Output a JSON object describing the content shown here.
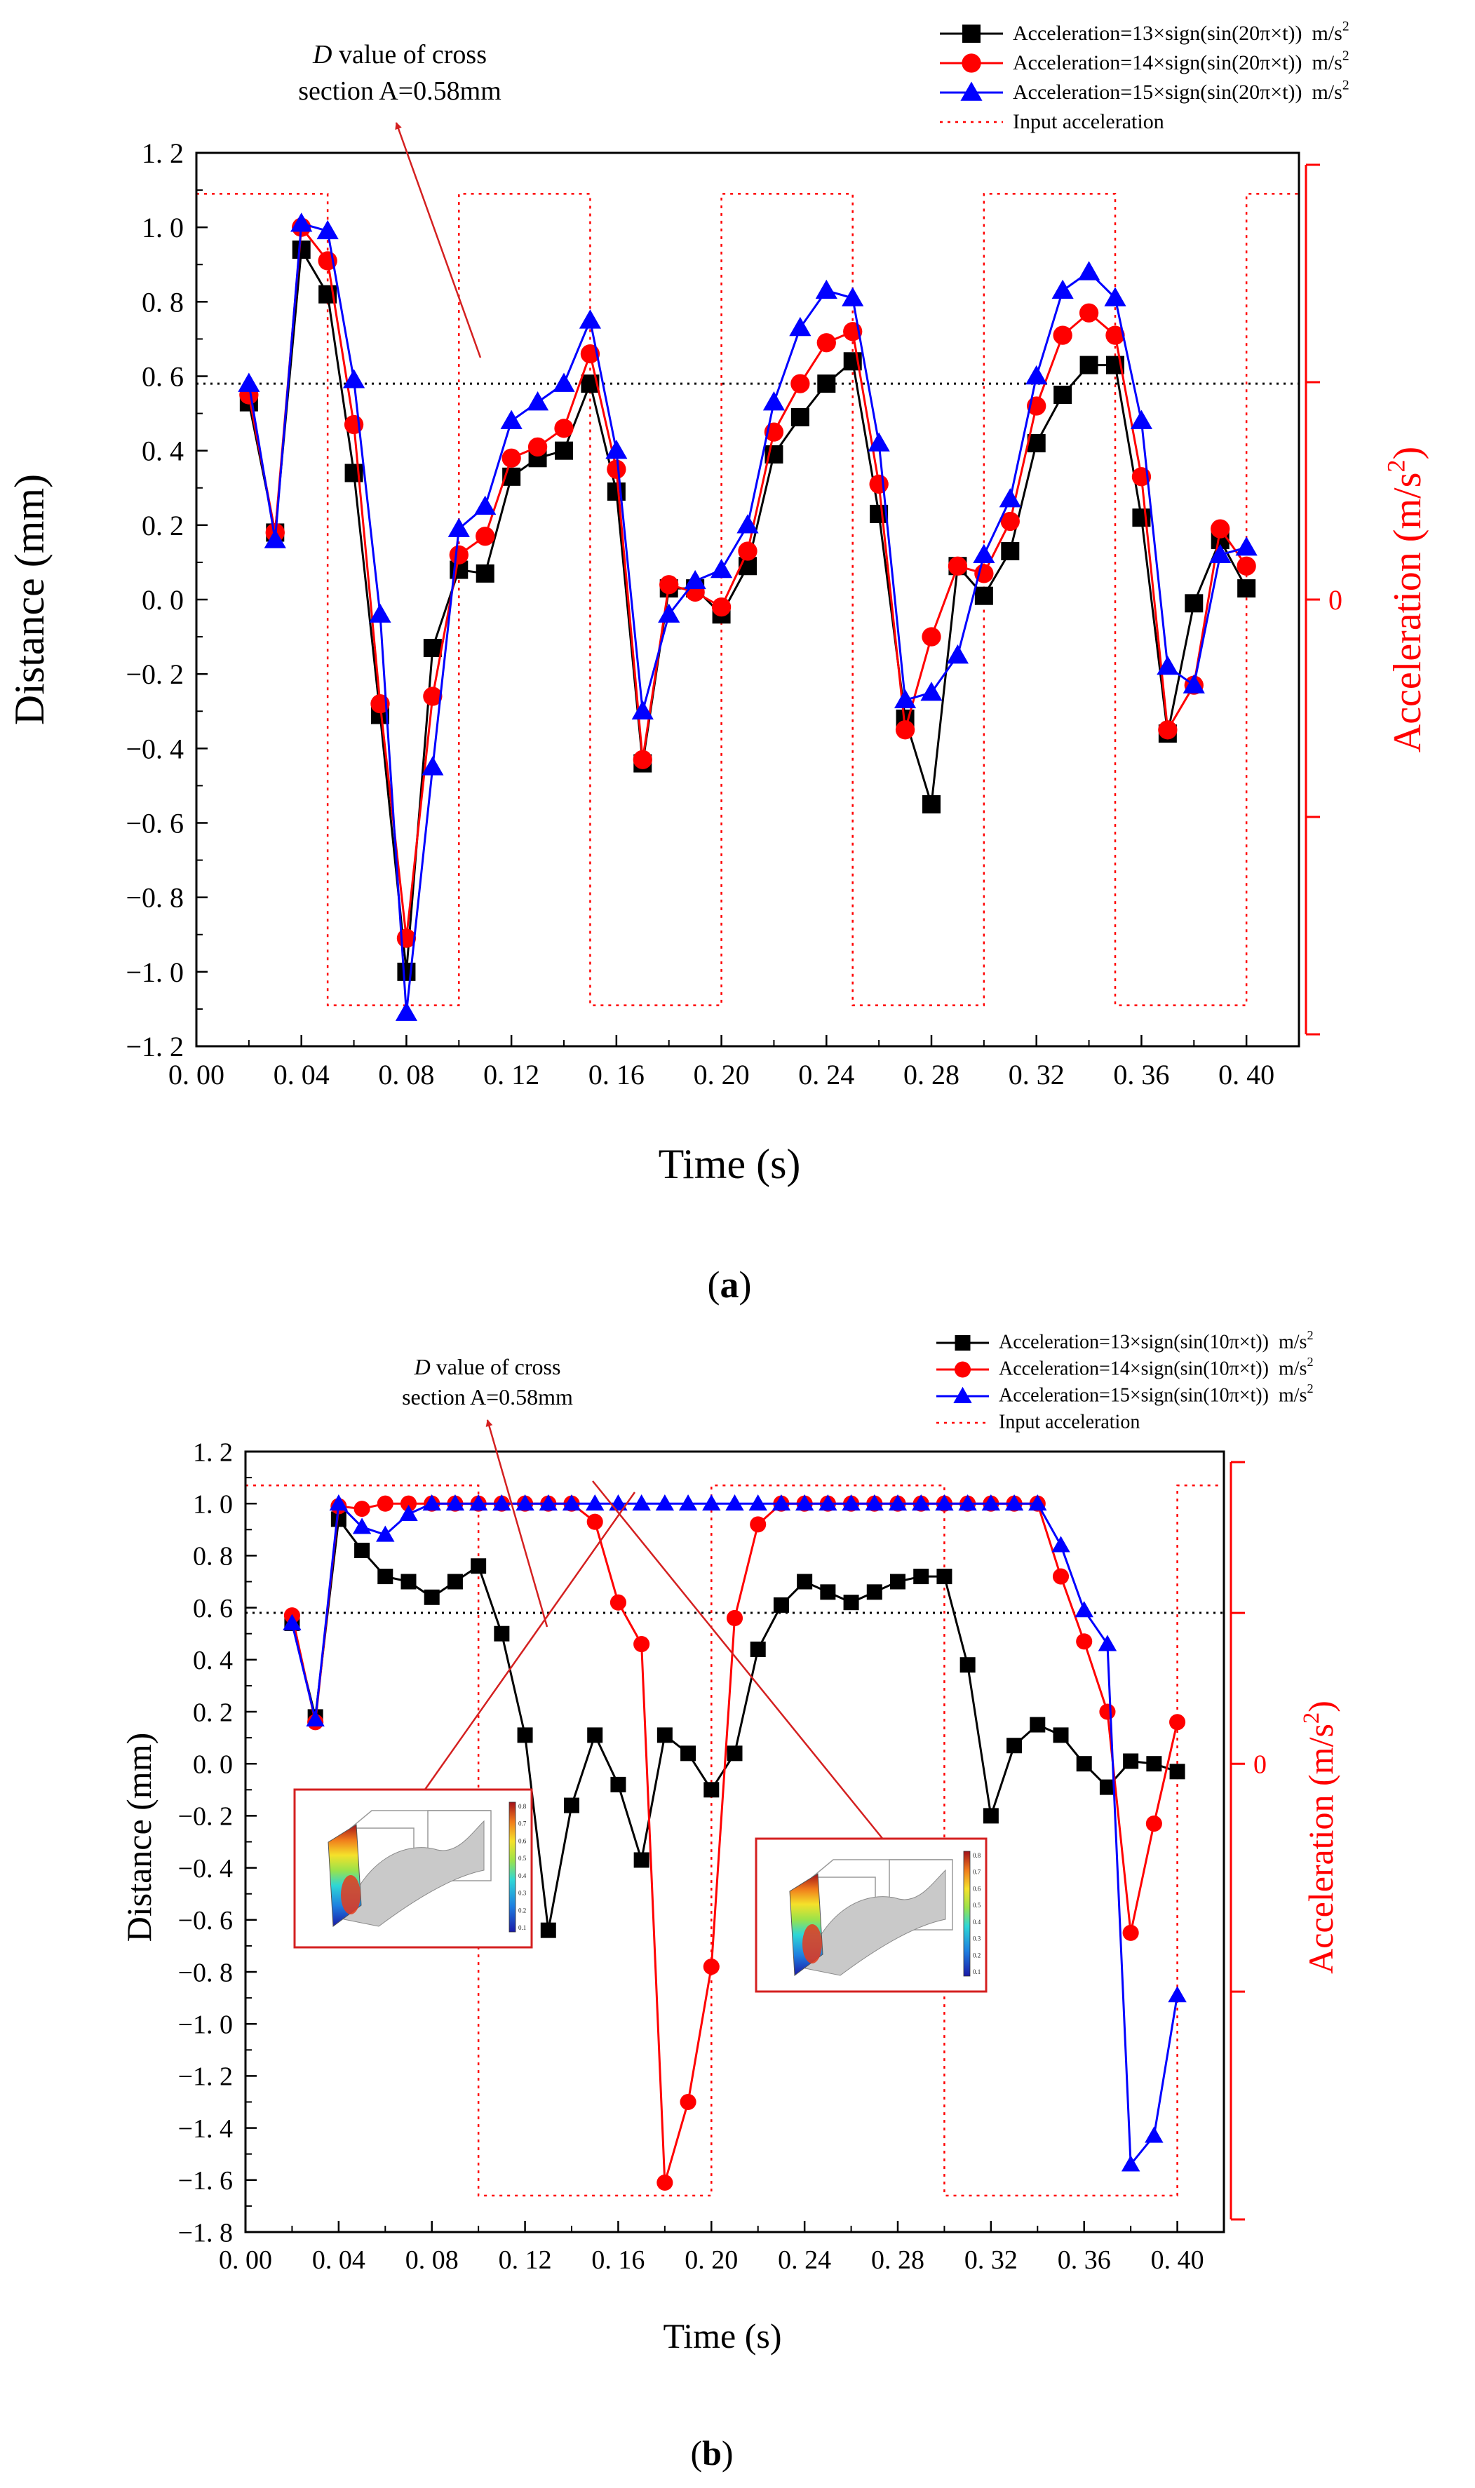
{
  "chart_data": [
    {
      "type": "line",
      "panel_label": "(a)",
      "panel_letter": "a",
      "xlabel": "Time (s)",
      "ylabel": "Distance (mm)",
      "y2label_main": "Acceleration (m/s",
      "y2label_sup": "2",
      "y2label_close": ")",
      "xlim": [
        0.0,
        0.42
      ],
      "ylim": [
        -1.2,
        1.2
      ],
      "xticks": [
        0.0,
        0.04,
        0.08,
        0.12,
        0.16,
        0.2,
        0.24,
        0.28,
        0.32,
        0.36,
        0.4
      ],
      "xtick_labels": [
        "0. 00",
        "0. 04",
        "0. 08",
        "0. 12",
        "0. 16",
        "0. 20",
        "0. 24",
        "0. 28",
        "0. 32",
        "0. 36",
        "0. 40"
      ],
      "yticks": [
        -1.2,
        -1.0,
        -0.8,
        -0.6,
        -0.4,
        -0.2,
        0.0,
        0.2,
        0.4,
        0.6,
        0.8,
        1.0,
        1.2
      ],
      "ytick_labels": [
        "−1. 2",
        "−1. 0",
        "−0. 8",
        "−0. 6",
        "−0. 4",
        "−0. 2",
        "0. 0",
        "0. 2",
        "0. 4",
        "0. 6",
        "0. 8",
        "1. 0",
        "1. 2"
      ],
      "y2_zero_label": "0",
      "reference_line_y": 0.58,
      "annotation": {
        "line1_italic": "D",
        "line1_rest": " value of cross",
        "line2": "section A=0.58mm"
      },
      "x": [
        0.02,
        0.03,
        0.04,
        0.05,
        0.06,
        0.07,
        0.08,
        0.09,
        0.1,
        0.11,
        0.12,
        0.13,
        0.14,
        0.15,
        0.16,
        0.17,
        0.18,
        0.19,
        0.2,
        0.21,
        0.22,
        0.23,
        0.24,
        0.25,
        0.26,
        0.27,
        0.28,
        0.29,
        0.3,
        0.31,
        0.32,
        0.33,
        0.34,
        0.35,
        0.36,
        0.37,
        0.38,
        0.39,
        0.4
      ],
      "series": [
        {
          "name": "Acceleration=13×sign(sin(20π×t))",
          "unit": "m/s",
          "unit_sup": "2",
          "color": "#000000",
          "marker": "square",
          "values": [
            0.53,
            0.18,
            0.94,
            0.82,
            0.34,
            -0.31,
            -1.0,
            -0.13,
            0.08,
            0.07,
            0.33,
            0.38,
            0.4,
            0.58,
            0.29,
            -0.44,
            0.03,
            0.03,
            -0.04,
            0.09,
            0.39,
            0.49,
            0.58,
            0.64,
            0.23,
            -0.32,
            -0.55,
            0.09,
            0.01,
            0.13,
            0.42,
            0.55,
            0.63,
            0.63,
            0.22,
            -0.36,
            -0.01,
            0.16,
            0.03
          ]
        },
        {
          "name": "Acceleration=14×sign(sin(20π×t))",
          "unit": "m/s",
          "unit_sup": "2",
          "color": "#ff0000",
          "marker": "circle",
          "values": [
            0.55,
            0.18,
            1.0,
            0.91,
            0.47,
            -0.28,
            -0.91,
            -0.26,
            0.12,
            0.17,
            0.38,
            0.41,
            0.46,
            0.66,
            0.35,
            -0.43,
            0.04,
            0.02,
            -0.02,
            0.13,
            0.45,
            0.58,
            0.69,
            0.72,
            0.31,
            -0.35,
            -0.1,
            0.09,
            0.07,
            0.21,
            0.52,
            0.71,
            0.77,
            0.71,
            0.33,
            -0.35,
            -0.23,
            0.19,
            0.09
          ]
        },
        {
          "name": "Acceleration=15×sign(sin(20π×t))",
          "unit": "m/s",
          "unit_sup": "2",
          "color": "#0000ff",
          "marker": "triangle",
          "values": [
            0.58,
            0.16,
            1.01,
            0.99,
            0.59,
            -0.04,
            -1.11,
            -0.45,
            0.19,
            0.25,
            0.48,
            0.53,
            0.58,
            0.75,
            0.4,
            -0.3,
            -0.04,
            0.05,
            0.08,
            0.2,
            0.53,
            0.73,
            0.83,
            0.81,
            0.42,
            -0.27,
            -0.25,
            -0.15,
            0.12,
            0.27,
            0.6,
            0.83,
            0.88,
            0.81,
            0.48,
            -0.18,
            -0.23,
            0.12,
            0.14
          ]
        }
      ],
      "input_acceleration": {
        "name": "Input acceleration",
        "color": "#ff0000",
        "style": "dotted",
        "period": 0.1,
        "high": 1.09,
        "low": -1.09
      }
    },
    {
      "type": "line",
      "panel_label": "(b)",
      "panel_letter": "b",
      "xlabel": "Time (s)",
      "ylabel": "Distance (mm)",
      "y2label_main": "Acceleration (m/s",
      "y2label_sup": "2",
      "y2label_close": ")",
      "xlim": [
        0.0,
        0.42
      ],
      "ylim": [
        -1.8,
        1.2
      ],
      "xticks": [
        0.0,
        0.04,
        0.08,
        0.12,
        0.16,
        0.2,
        0.24,
        0.28,
        0.32,
        0.36,
        0.4
      ],
      "xtick_labels": [
        "0. 00",
        "0. 04",
        "0. 08",
        "0. 12",
        "0. 16",
        "0. 20",
        "0. 24",
        "0. 28",
        "0. 32",
        "0. 36",
        "0. 40"
      ],
      "yticks": [
        -1.8,
        -1.6,
        -1.4,
        -1.2,
        -1.0,
        -0.8,
        -0.6,
        -0.4,
        -0.2,
        0.0,
        0.2,
        0.4,
        0.6,
        0.8,
        1.0,
        1.2
      ],
      "ytick_labels": [
        "−1. 8",
        "−1. 6",
        "−1. 4",
        "−1. 2",
        "−1. 0",
        "−0. 8",
        "−0. 6",
        "−0. 4",
        "−0. 2",
        "0. 0",
        "0. 2",
        "0. 4",
        "0. 6",
        "0. 8",
        "1. 0",
        "1. 2"
      ],
      "y2_zero_label": "0",
      "reference_line_y": 0.58,
      "annotation": {
        "line1_italic": "D",
        "line1_rest": " value of cross",
        "line2": "section A=0.58mm"
      },
      "x": [
        0.02,
        0.03,
        0.04,
        0.05,
        0.06,
        0.07,
        0.08,
        0.09,
        0.1,
        0.11,
        0.12,
        0.13,
        0.14,
        0.15,
        0.16,
        0.17,
        0.18,
        0.19,
        0.2,
        0.21,
        0.22,
        0.23,
        0.24,
        0.25,
        0.26,
        0.27,
        0.28,
        0.29,
        0.3,
        0.31,
        0.32,
        0.33,
        0.34,
        0.35,
        0.36,
        0.37,
        0.38,
        0.39,
        0.4
      ],
      "series": [
        {
          "name": "Acceleration=13×sign(sin(10π×t))",
          "unit": "m/s",
          "unit_sup": "2",
          "color": "#000000",
          "marker": "square",
          "values": [
            0.54,
            0.18,
            0.94,
            0.82,
            0.72,
            0.7,
            0.64,
            0.7,
            0.76,
            0.5,
            0.11,
            -0.64,
            -0.16,
            0.11,
            -0.08,
            -0.37,
            0.11,
            0.04,
            -0.1,
            0.04,
            0.44,
            0.61,
            0.7,
            0.66,
            0.62,
            0.66,
            0.7,
            0.72,
            0.72,
            0.38,
            -0.2,
            0.07,
            0.15,
            0.11,
            0.0,
            -0.09,
            0.01,
            0.0,
            -0.03
          ]
        },
        {
          "name": "Acceleration=14×sign(sin(10π×t))",
          "unit": "m/s",
          "unit_sup": "2",
          "color": "#ff0000",
          "marker": "circle",
          "values": [
            0.57,
            0.16,
            0.99,
            0.98,
            1.0,
            1.0,
            1.0,
            1.0,
            1.0,
            1.0,
            1.0,
            1.0,
            1.0,
            0.93,
            0.62,
            0.46,
            -1.61,
            -1.3,
            -0.78,
            0.56,
            0.92,
            1.0,
            1.0,
            1.0,
            1.0,
            1.0,
            1.0,
            1.0,
            1.0,
            1.0,
            1.0,
            1.0,
            1.0,
            0.72,
            0.47,
            0.2,
            -0.65,
            -0.23,
            0.16
          ]
        },
        {
          "name": "Acceleration=15×sign(sin(10π×t))",
          "unit": "m/s",
          "unit_sup": "2",
          "color": "#0000ff",
          "marker": "triangle",
          "values": [
            0.54,
            0.17,
            1.0,
            0.91,
            0.88,
            0.96,
            1.0,
            1.0,
            1.0,
            1.0,
            1.0,
            1.0,
            1.0,
            1.0,
            1.0,
            1.0,
            1.0,
            1.0,
            1.0,
            1.0,
            1.0,
            1.0,
            1.0,
            1.0,
            1.0,
            1.0,
            1.0,
            1.0,
            1.0,
            1.0,
            1.0,
            1.0,
            1.0,
            0.84,
            0.59,
            0.46,
            -1.54,
            -1.43,
            -0.89
          ]
        }
      ],
      "input_acceleration": {
        "name": "Input acceleration",
        "color": "#ff0000",
        "style": "dotted",
        "period": 0.2,
        "high": 1.07,
        "low": -1.66
      },
      "insets": [
        {
          "name": "inset-left",
          "colorbar_ticks": [
            "0.8",
            "0.7",
            "0.6",
            "0.5",
            "0.4",
            "0.3",
            "0.2",
            "0.1"
          ]
        },
        {
          "name": "inset-right",
          "colorbar_ticks": [
            "0.8",
            "0.7",
            "0.6",
            "0.5",
            "0.4",
            "0.3",
            "0.2",
            "0.1"
          ]
        }
      ]
    }
  ]
}
